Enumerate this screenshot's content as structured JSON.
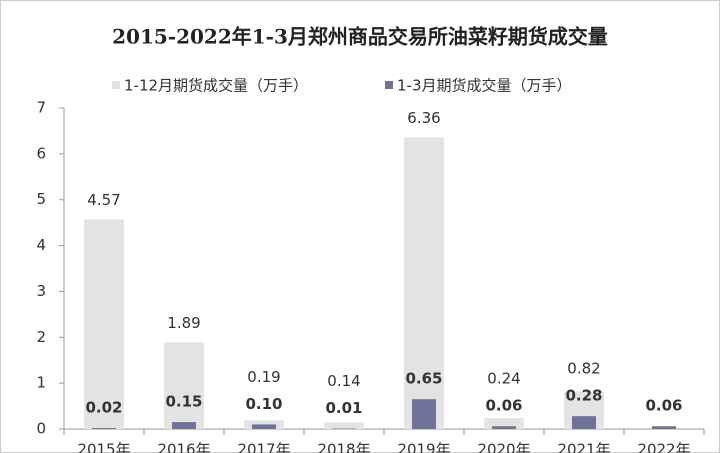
{
  "chart_data": {
    "type": "bar",
    "title": "2015-2022年1-3月郑州商品交易所油菜籽期货成交量",
    "categories": [
      "2015年",
      "2016年",
      "2017年",
      "2018年",
      "2019年",
      "2020年",
      "2021年",
      "2022年"
    ],
    "series": [
      {
        "name": "1-12月期货成交量（万手）",
        "color": "#e3e3e3",
        "values": [
          4.57,
          1.89,
          0.19,
          0.14,
          6.36,
          0.24,
          0.82,
          null
        ],
        "value_labels": [
          "4.57",
          "1.89",
          "0.19",
          "0.14",
          "6.36",
          "0.24",
          "0.82",
          null
        ]
      },
      {
        "name": "1-3月期货成交量（万手）",
        "color": "#6f7399",
        "values": [
          0.02,
          0.15,
          0.1,
          0.01,
          0.65,
          0.06,
          0.28,
          0.06
        ],
        "value_labels": [
          "0.02",
          "0.15",
          "0.10",
          "0.01",
          "0.65",
          "0.06",
          "0.28",
          "0.06"
        ]
      }
    ],
    "ylim": [
      0,
      7
    ],
    "yticks": [
      0,
      1,
      2,
      3,
      4,
      5,
      6,
      7
    ],
    "grid": false,
    "legend": "top"
  }
}
